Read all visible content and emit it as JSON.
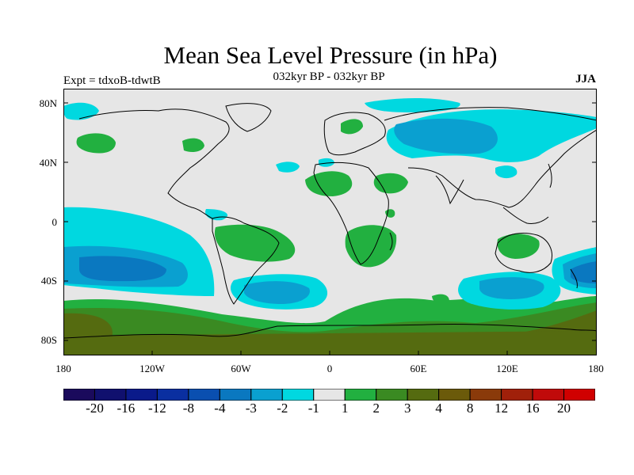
{
  "figure": {
    "title": "Mean Sea Level Pressure (in hPa)",
    "subtitle": "032kyr BP - 032kyr BP",
    "left_label": "Expt = tdxoB-tdwtB",
    "right_label": "JJA"
  },
  "axes": {
    "lat_labels": [
      "80N",
      "40N",
      "0",
      "40S",
      "80S"
    ],
    "lat_values": [
      80,
      40,
      0,
      -40,
      -80
    ],
    "lon_labels": [
      "180",
      "120W",
      "60W",
      "0",
      "60E",
      "120E",
      "180"
    ],
    "lon_values": [
      -180,
      -120,
      -60,
      0,
      60,
      120,
      180
    ]
  },
  "colorbar": {
    "labels": [
      "-20",
      "-16",
      "-12",
      "-8",
      "-4",
      "-3",
      "-2",
      "-1",
      "1",
      "2",
      "3",
      "4",
      "8",
      "12",
      "16",
      "20"
    ],
    "colors": [
      "#1a0a5c",
      "#10106e",
      "#0a1a8a",
      "#0a2fa0",
      "#0a4fb0",
      "#0a78c0",
      "#0aa0d0",
      "#00d8e0",
      "#e6e6e6",
      "#22b040",
      "#3a8a22",
      "#556b10",
      "#6b5a0a",
      "#8a3a0a",
      "#a0200a",
      "#c00a0a",
      "#d00000"
    ]
  },
  "map": {
    "background_color": "#e6e6e6",
    "field_colors": {
      "cyan": "#00d8e0",
      "light_blue": "#0aa0d0",
      "mid_blue": "#0a78c0",
      "green": "#22b040",
      "dark_green": "#3a8a22",
      "olive": "#556b10"
    }
  }
}
